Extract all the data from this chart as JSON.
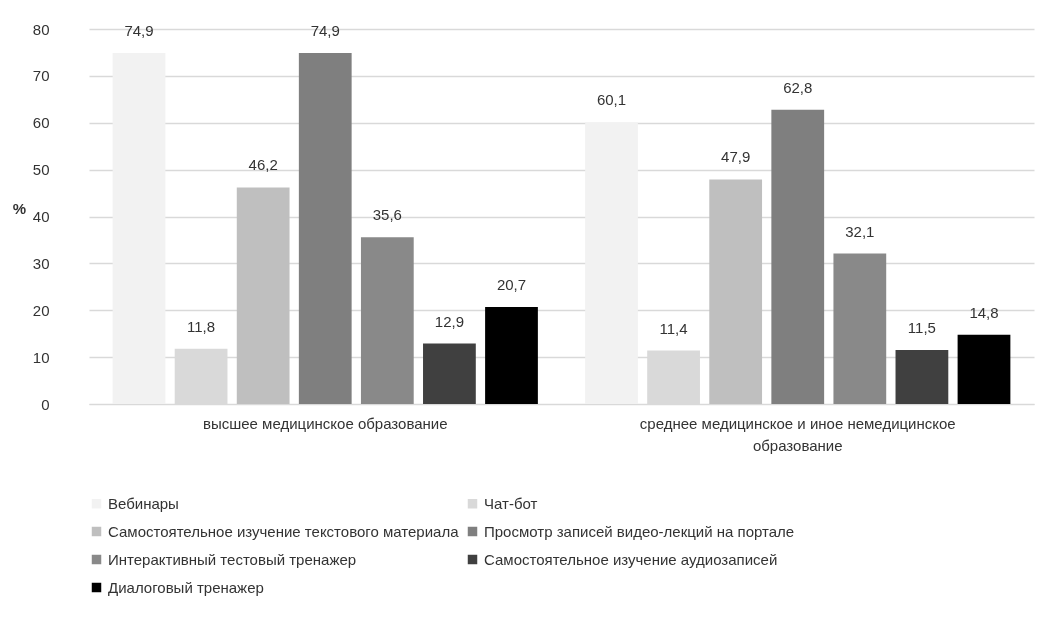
{
  "chart_data": {
    "type": "bar",
    "ylabel": "%",
    "categories": [
      "высшее медицинское образование",
      "среднее медицинское и иное немедицинское образование"
    ],
    "series": [
      {
        "name": "Вебинары",
        "color": "#f2f2f2",
        "values": [
          74.9,
          60.1
        ],
        "value_labels": [
          "74,9",
          "60,1"
        ]
      },
      {
        "name": "Чат-бот",
        "color": "#d9d9d9",
        "values": [
          11.8,
          11.4
        ],
        "value_labels": [
          "11,8",
          "11,4"
        ]
      },
      {
        "name": "Самостоятельное изучение текстового материала",
        "color": "#bfbfbf",
        "values": [
          46.2,
          47.9
        ],
        "value_labels": [
          "46,2",
          "47,9"
        ]
      },
      {
        "name": "Просмотр записей видео-лекций на портале",
        "color": "#7f7f7f",
        "values": [
          74.9,
          62.8
        ],
        "value_labels": [
          "74,9",
          "62,8"
        ]
      },
      {
        "name": "Интерактивный тестовый тренажер",
        "color": "#898989",
        "values": [
          35.6,
          32.1
        ],
        "value_labels": [
          "35,6",
          "32,1"
        ]
      },
      {
        "name": "Самостоятельное изучение аудиозаписей",
        "color": "#404040",
        "values": [
          12.9,
          11.5
        ],
        "value_labels": [
          "12,9",
          "11,5"
        ]
      },
      {
        "name": "Диалоговый тренажер",
        "color": "#000000",
        "values": [
          20.7,
          14.8
        ],
        "value_labels": [
          "20,7",
          "14,8"
        ]
      }
    ],
    "ylim": [
      0,
      80
    ],
    "yticks": [
      0,
      10,
      20,
      30,
      40,
      50,
      60,
      70,
      80
    ],
    "grid": "y",
    "legend": "bottom"
  }
}
